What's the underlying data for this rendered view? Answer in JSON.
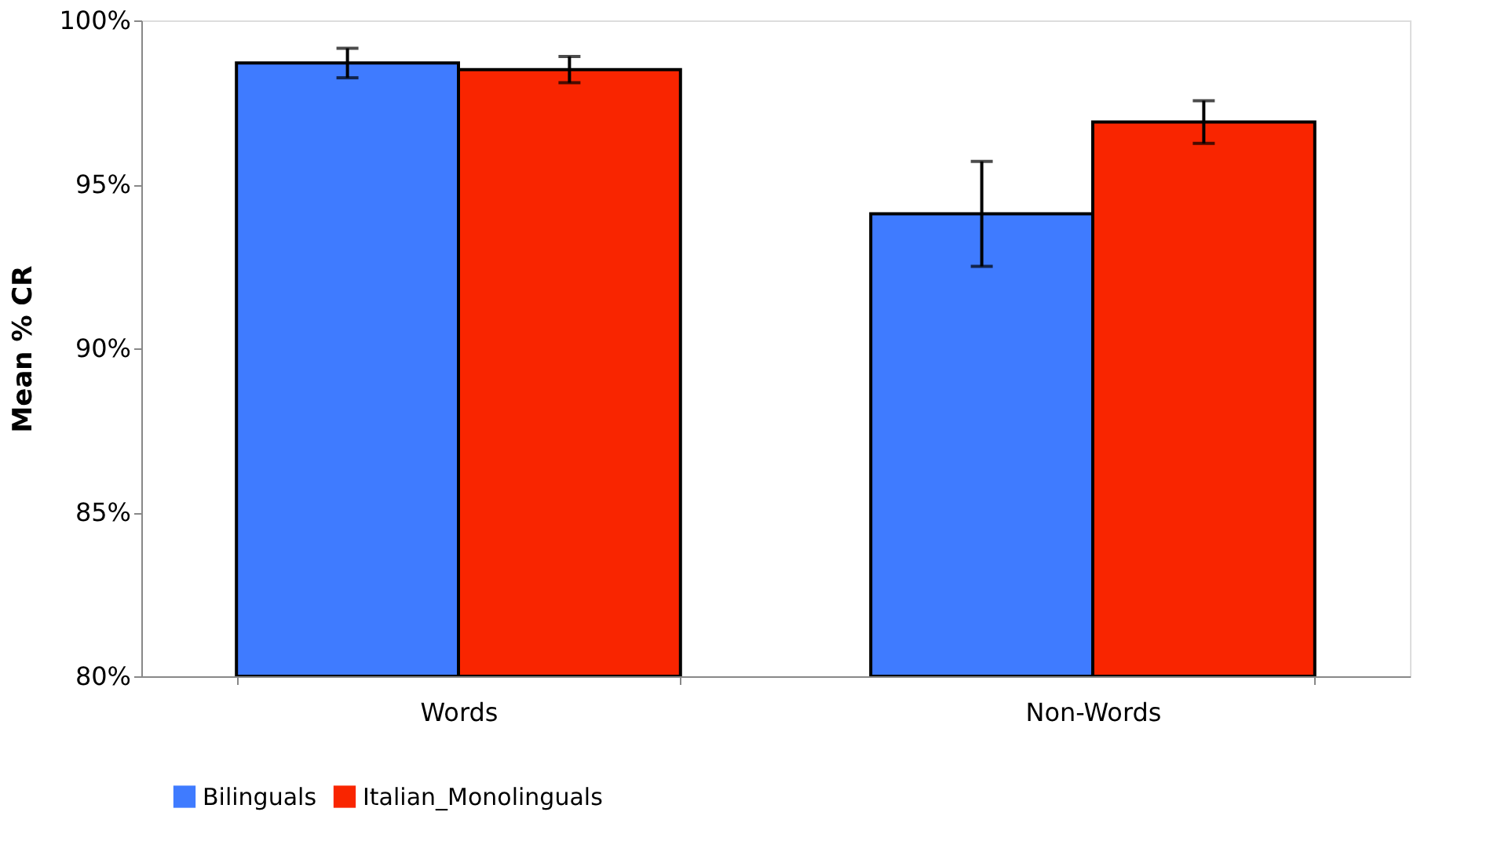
{
  "chart_data": {
    "type": "bar",
    "ylabel": "Mean % CR",
    "categories": [
      "Words",
      "Non-Words"
    ],
    "series": [
      {
        "name": "Bilinguals",
        "color": "#3f7bff",
        "values": [
          98.7,
          94.1
        ],
        "errors": [
          0.45,
          1.6
        ]
      },
      {
        "name": "Italian_Monolinguals",
        "color": "#f92500",
        "values": [
          98.5,
          96.9
        ],
        "errors": [
          0.4,
          0.65
        ]
      }
    ],
    "ylim": [
      80,
      100
    ],
    "yticks": [
      {
        "value": 80,
        "label": "80%"
      },
      {
        "value": 85,
        "label": "85%"
      },
      {
        "value": 90,
        "label": "90%"
      },
      {
        "value": 95,
        "label": "95%"
      },
      {
        "value": 100,
        "label": "100%"
      }
    ],
    "grid": false,
    "legend": "bottom"
  }
}
